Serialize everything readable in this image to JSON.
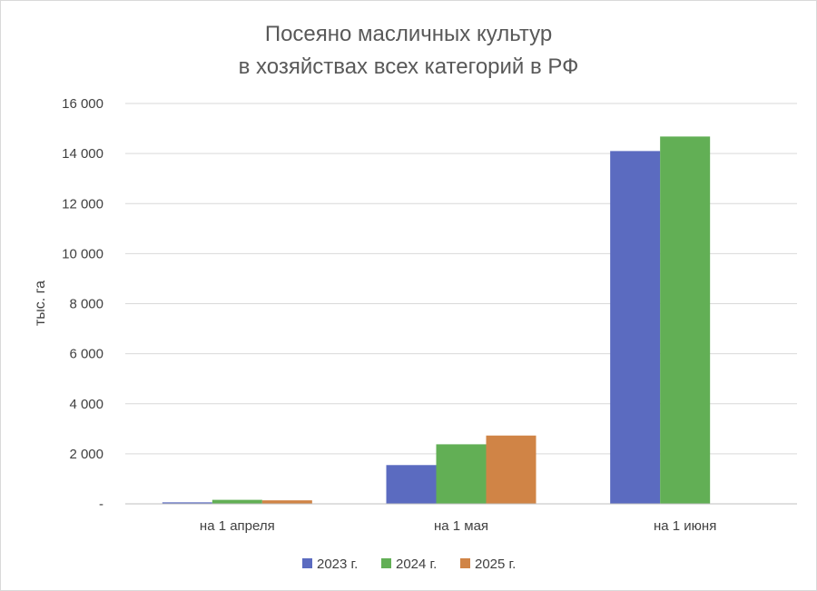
{
  "chart_data": {
    "type": "bar",
    "title": [
      "Посеяно масличных культур",
      "в хозяйствах всех категорий в РФ"
    ],
    "ylabel": "тыс. га",
    "xlabel": "",
    "categories": [
      "на 1 апреля",
      "на 1 мая",
      "на 1 июня"
    ],
    "series": [
      {
        "name": "2023 г.",
        "color": "#5B6BC0",
        "values": [
          60,
          1550,
          14100
        ]
      },
      {
        "name": "2024 г.",
        "color": "#62AF55",
        "values": [
          160,
          2380,
          14680
        ]
      },
      {
        "name": "2025 г.",
        "color": "#D08446",
        "values": [
          140,
          2730,
          0
        ]
      }
    ],
    "ylim": [
      0,
      16000
    ],
    "yticks": [
      0,
      2000,
      4000,
      6000,
      8000,
      10000,
      12000,
      14000,
      16000
    ],
    "ytick_labels": [
      "-",
      "2 000",
      "4 000",
      "6 000",
      "8 000",
      "10 000",
      "12 000",
      "14 000",
      "16 000"
    ],
    "grid": true,
    "legend_position": "bottom"
  }
}
